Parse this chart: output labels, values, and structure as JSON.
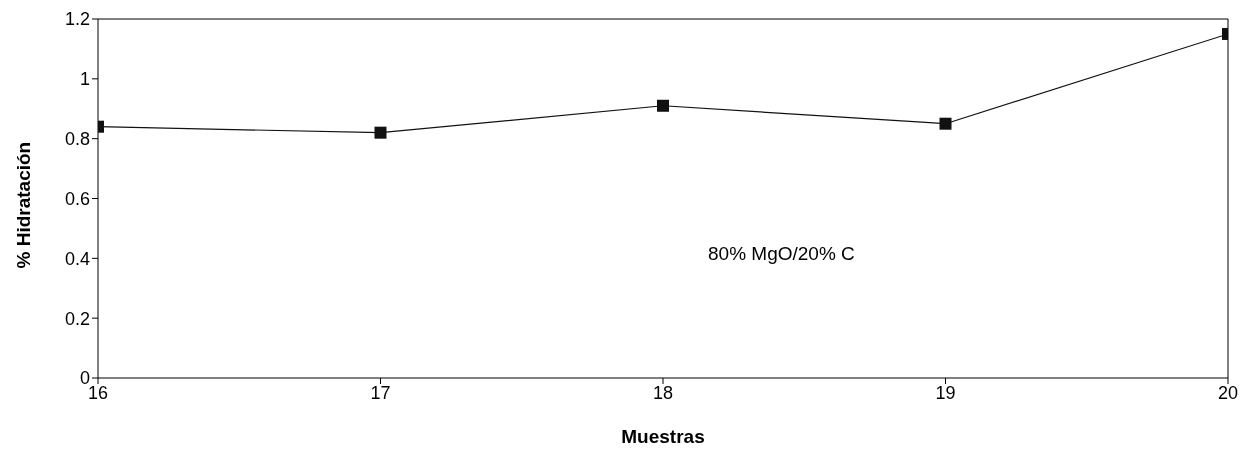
{
  "chart_data": {
    "type": "line",
    "xlabel": "Muestras",
    "ylabel": "% Hidratación",
    "annotations": [
      "80% MgO/20% C"
    ],
    "x": [
      16,
      17,
      18,
      19,
      20
    ],
    "series": [
      {
        "color": "#111111",
        "values": [
          0.84,
          0.82,
          0.91,
          0.85,
          1.15
        ]
      }
    ],
    "xlim": [
      16,
      20
    ],
    "xticks": [
      16,
      17,
      18,
      19,
      20
    ],
    "ylim": [
      0,
      1.2
    ],
    "yticks": [
      0,
      0.2,
      0.4,
      0.6,
      0.8,
      1,
      1.2
    ],
    "grid": false,
    "legend": false,
    "marker": "square",
    "line_style": "solid"
  }
}
